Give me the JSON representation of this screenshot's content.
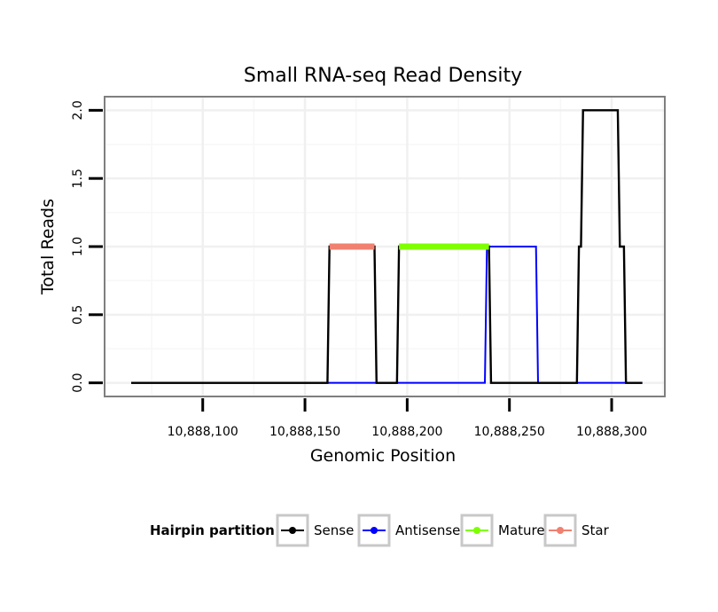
{
  "chart_data": {
    "type": "line",
    "title": "Small RNA-seq Read Density",
    "xlabel": "Genomic Position",
    "ylabel": "Total Reads",
    "xlim": [
      10888052,
      10888326
    ],
    "ylim": [
      -0.1,
      2.1
    ],
    "x_ticks": [
      {
        "value": 10888100,
        "label": "10,888,100"
      },
      {
        "value": 10888150,
        "label": "10,888,150"
      },
      {
        "value": 10888200,
        "label": "10,888,200"
      },
      {
        "value": 10888250,
        "label": "10,888,250"
      },
      {
        "value": 10888300,
        "label": "10,888,300"
      }
    ],
    "y_ticks": [
      {
        "value": 0.0,
        "label": "0.0"
      },
      {
        "value": 0.5,
        "label": "0.5"
      },
      {
        "value": 1.0,
        "label": "1.0"
      },
      {
        "value": 1.5,
        "label": "1.5"
      },
      {
        "value": 2.0,
        "label": "2.0"
      }
    ],
    "grid": true,
    "legend_title": "Hairpin partition",
    "legend_position": "bottom",
    "series": [
      {
        "name": "Antisense",
        "color": "#0000ff",
        "width": 2,
        "x": [
          10888065,
          10888238,
          10888239,
          10888263,
          10888264,
          10888315
        ],
        "y": [
          0,
          0,
          1,
          1,
          0,
          0
        ]
      },
      {
        "name": "Sense",
        "color": "#000000",
        "width": 2.4,
        "x": [
          10888065,
          10888161,
          10888162,
          10888184,
          10888185,
          10888195,
          10888196,
          10888240,
          10888241,
          10888283,
          10888284,
          10888285,
          10888286,
          10888303,
          10888304,
          10888306,
          10888307,
          10888315
        ],
        "y": [
          0,
          0,
          1,
          1,
          0,
          0,
          1,
          1,
          0,
          0,
          1,
          1,
          2,
          2,
          1,
          1,
          0,
          0
        ]
      },
      {
        "name": "Mature",
        "color": "#7fff00",
        "width": 7,
        "x": [
          10888196,
          10888240
        ],
        "y": [
          1,
          1
        ]
      },
      {
        "name": "Star",
        "color": "#f08070",
        "width": 7,
        "x": [
          10888162,
          10888184
        ],
        "y": [
          1,
          1
        ]
      }
    ],
    "legend_items": [
      {
        "name": "Sense",
        "color": "#000000"
      },
      {
        "name": "Antisense",
        "color": "#0000ff"
      },
      {
        "name": "Mature",
        "color": "#7fff00"
      },
      {
        "name": "Star",
        "color": "#f08070"
      }
    ]
  }
}
